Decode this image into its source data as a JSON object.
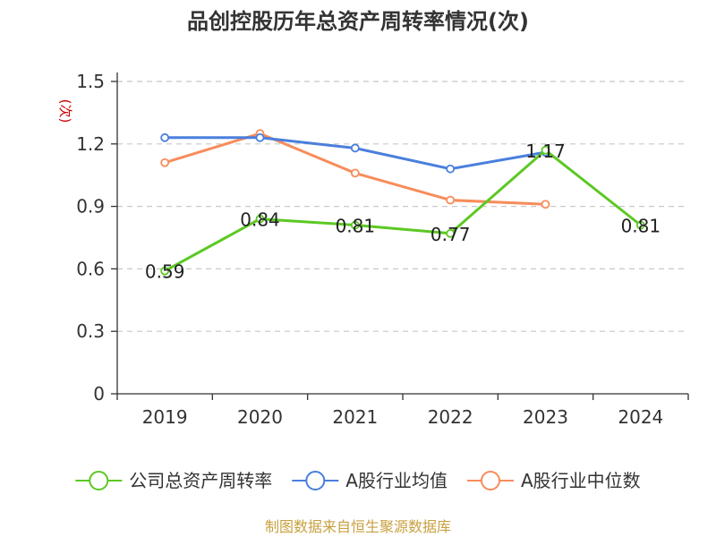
{
  "chart_data": {
    "type": "line",
    "title": "品创控股历年总资产周转率情况(次)",
    "ylabel": "(次)",
    "xlabel": "",
    "categories": [
      "2019",
      "2020",
      "2021",
      "2022",
      "2023",
      "2024"
    ],
    "ylim": [
      0,
      1.5
    ],
    "yticks": [
      "0",
      "0.3",
      "0.6",
      "0.9",
      "1.2",
      "1.5"
    ],
    "grid": true,
    "legend_position": "bottom",
    "series": [
      {
        "name": "公司总资产周转率",
        "color": "#5cc823",
        "values": [
          0.59,
          0.84,
          0.81,
          0.77,
          1.17,
          0.81
        ],
        "labels": [
          "0.59",
          "0.84",
          "0.81",
          "0.77",
          "1.17",
          "0.81"
        ],
        "show_labels": true
      },
      {
        "name": "A股行业均值",
        "color": "#4a7fdc",
        "values": [
          1.23,
          1.23,
          1.18,
          1.08,
          1.16,
          null
        ],
        "show_labels": false
      },
      {
        "name": "A股行业中位数",
        "color": "#f78c5b",
        "values": [
          1.11,
          1.25,
          1.06,
          0.93,
          0.91,
          null
        ],
        "show_labels": false
      }
    ],
    "source": "制图数据来自恒生聚源数据库"
  }
}
